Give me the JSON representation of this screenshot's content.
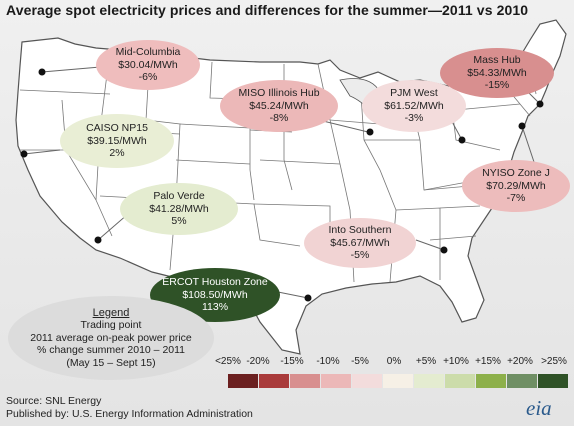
{
  "title": "Average spot electricity prices and differences for the summer—2011 vs 2010",
  "hubs": [
    {
      "id": "mid-columbia",
      "name": "Mid-Columbia",
      "price": "$30.04/MWh",
      "change": "-6%",
      "color": "#efbdbd"
    },
    {
      "id": "caiso",
      "name": "CAISO NP15",
      "price": "$39.15/MWh",
      "change": "2%",
      "color": "#e9eed5"
    },
    {
      "id": "palo-verde",
      "name": "Palo Verde",
      "price": "$41.28/MWh",
      "change": "5%",
      "color": "#e4ecd0"
    },
    {
      "id": "miso",
      "name": "MISO Illinois Hub",
      "price": "$45.24/MWh",
      "change": "-8%",
      "color": "#ecb8b8"
    },
    {
      "id": "pjm-west",
      "name": "PJM West",
      "price": "$61.52/MWh",
      "change": "-3%",
      "color": "#f3dcdc"
    },
    {
      "id": "mass-hub",
      "name": "Mass Hub",
      "price": "$54.33/MWh",
      "change": "-15%",
      "color": "#d88f8f"
    },
    {
      "id": "nyiso",
      "name": "NYISO Zone J",
      "price": "$70.29/MWh",
      "change": "-7%",
      "color": "#edbcbc"
    },
    {
      "id": "into-southern",
      "name": "Into Southern",
      "price": "$45.67/MWh",
      "change": "-5%",
      "color": "#f1d3d3"
    },
    {
      "id": "ercot",
      "name": "ERCOT Houston Zone",
      "price": "$108.50/MWh",
      "change": "113%",
      "color": "#2f5227"
    }
  ],
  "legend": {
    "heading": "Legend",
    "line1": "Trading point",
    "line2": "2011 average on-peak power price",
    "line3": "% change summer 2010 – 2011",
    "line4": "(May 15 – Sept 15)"
  },
  "scale": {
    "labels": [
      "<25%",
      "-20%",
      "-15%",
      "-10%",
      "-5%",
      "0%",
      "+5%",
      "+10%",
      "+15%",
      "+20%",
      ">25%"
    ],
    "colors": [
      "#6b1f1f",
      "#a93a3a",
      "#d88f8f",
      "#ecb8b8",
      "#f3dcdc",
      "#f6f0e6",
      "#e4ecd0",
      "#ccdcaa",
      "#8db04a",
      "#6f8f64",
      "#2f5227"
    ]
  },
  "source": "Source: SNL Energy",
  "publisher": "Published by: U.S. Energy Information Administration",
  "logo": "eia"
}
